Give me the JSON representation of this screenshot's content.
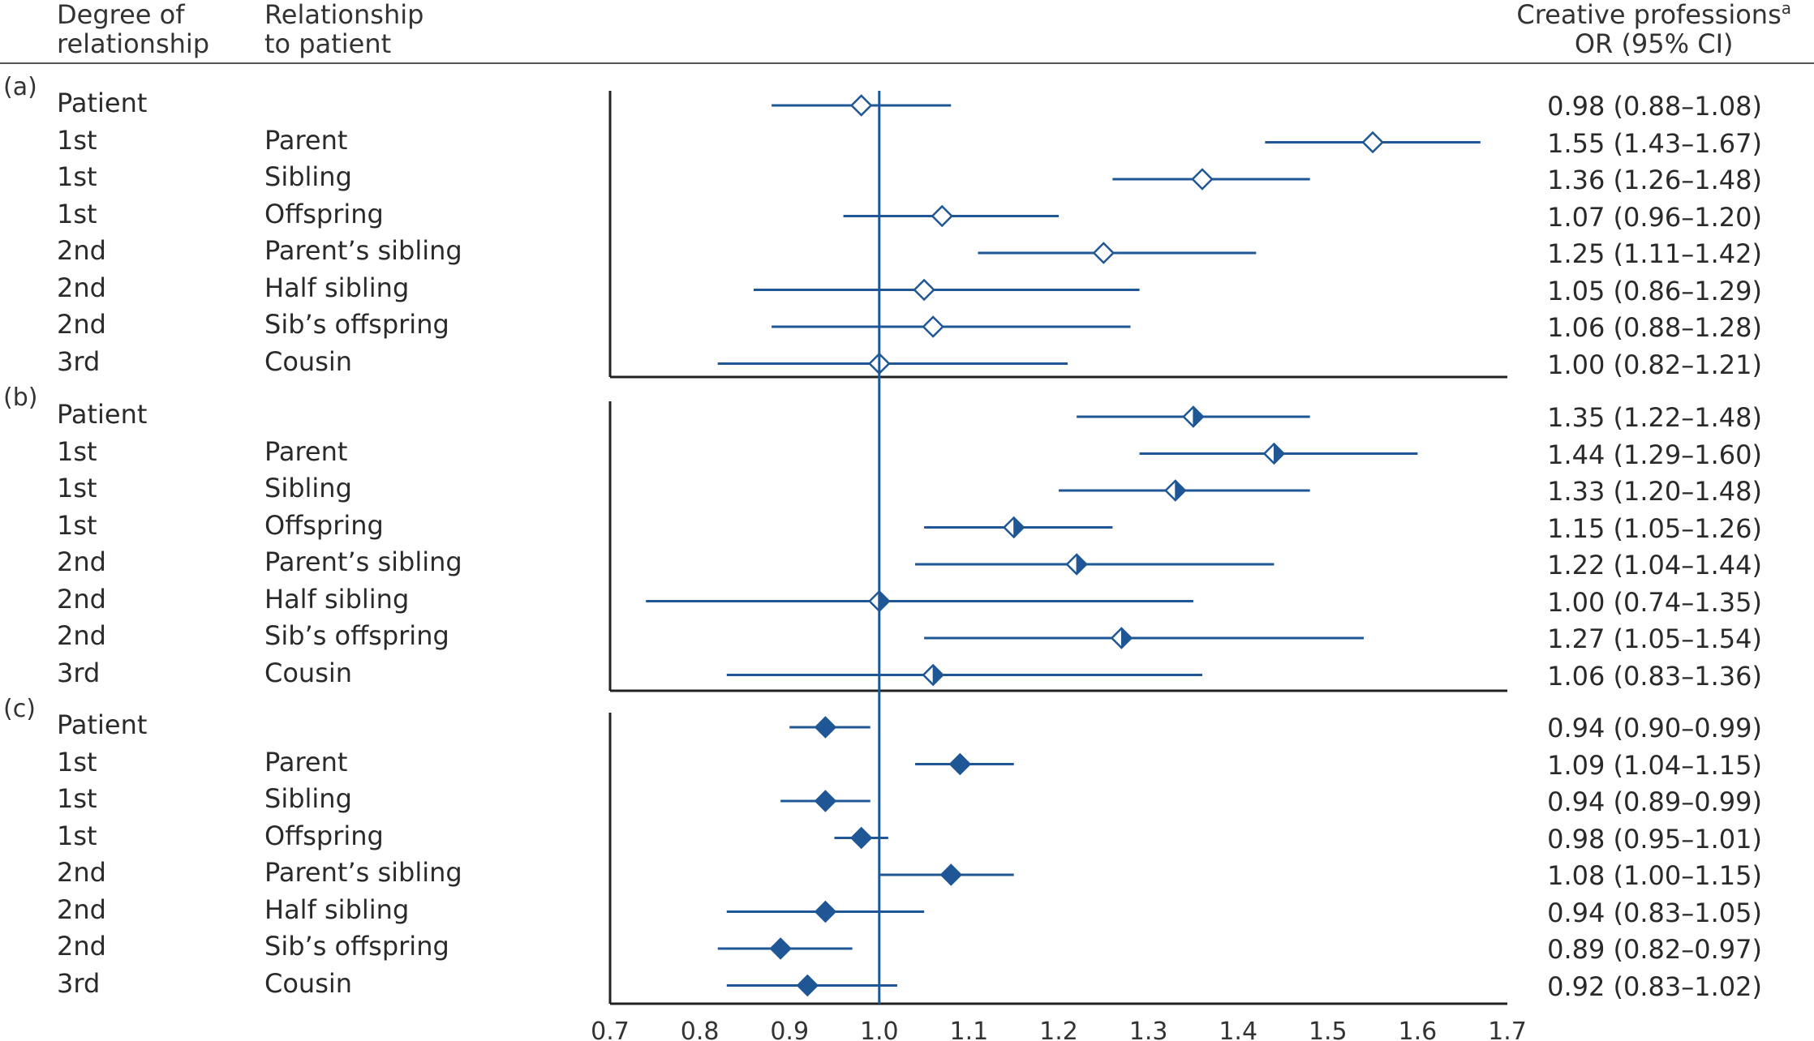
{
  "header": {
    "degree_line1": "Degree of",
    "degree_line2": "relationship",
    "relation_line1": "Relationship",
    "relation_line2": "to patient",
    "or_line1": "Creative professions",
    "or_sup": "a",
    "or_line2": "OR (95% CI)"
  },
  "colors": {
    "series": "#1f5796",
    "axis": "#222222"
  },
  "chart_data": {
    "type": "forest",
    "xlim": [
      0.7,
      1.7
    ],
    "ticks": [
      "0.7",
      "0.8",
      "0.9",
      "1.0",
      "1.1",
      "1.2",
      "1.3",
      "1.4",
      "1.5",
      "1.6",
      "1.7"
    ],
    "reference_line": 1.0,
    "panels": [
      {
        "label": "(a)",
        "marker": "open-diamond",
        "rows": [
          {
            "degree": "Patient",
            "relation": "",
            "or": 0.98,
            "lo": 0.88,
            "hi": 1.08,
            "text": "0.98 (0.88–1.08)"
          },
          {
            "degree": "1st",
            "relation": "Parent",
            "or": 1.55,
            "lo": 1.43,
            "hi": 1.67,
            "text": "1.55 (1.43–1.67)"
          },
          {
            "degree": "1st",
            "relation": "Sibling",
            "or": 1.36,
            "lo": 1.26,
            "hi": 1.48,
            "text": "1.36 (1.26–1.48)"
          },
          {
            "degree": "1st",
            "relation": "Offspring",
            "or": 1.07,
            "lo": 0.96,
            "hi": 1.2,
            "text": "1.07 (0.96–1.20)"
          },
          {
            "degree": "2nd",
            "relation": "Parent’s sibling",
            "or": 1.25,
            "lo": 1.11,
            "hi": 1.42,
            "text": "1.25 (1.11–1.42)"
          },
          {
            "degree": "2nd",
            "relation": "Half sibling",
            "or": 1.05,
            "lo": 0.86,
            "hi": 1.29,
            "text": "1.05 (0.86–1.29)"
          },
          {
            "degree": "2nd",
            "relation": "Sib’s offspring",
            "or": 1.06,
            "lo": 0.88,
            "hi": 1.28,
            "text": "1.06 (0.88–1.28)"
          },
          {
            "degree": "3rd",
            "relation": "Cousin",
            "or": 1.0,
            "lo": 0.82,
            "hi": 1.21,
            "text": "1.00 (0.82–1.21)"
          }
        ]
      },
      {
        "label": "(b)",
        "marker": "half-diamond",
        "rows": [
          {
            "degree": "Patient",
            "relation": "",
            "or": 1.35,
            "lo": 1.22,
            "hi": 1.48,
            "text": "1.35 (1.22–1.48)"
          },
          {
            "degree": "1st",
            "relation": "Parent",
            "or": 1.44,
            "lo": 1.29,
            "hi": 1.6,
            "text": "1.44 (1.29–1.60)"
          },
          {
            "degree": "1st",
            "relation": "Sibling",
            "or": 1.33,
            "lo": 1.2,
            "hi": 1.48,
            "text": "1.33 (1.20–1.48)"
          },
          {
            "degree": "1st",
            "relation": "Offspring",
            "or": 1.15,
            "lo": 1.05,
            "hi": 1.26,
            "text": "1.15 (1.05–1.26)"
          },
          {
            "degree": "2nd",
            "relation": "Parent’s sibling",
            "or": 1.22,
            "lo": 1.04,
            "hi": 1.44,
            "text": "1.22 (1.04–1.44)"
          },
          {
            "degree": "2nd",
            "relation": "Half sibling",
            "or": 1.0,
            "lo": 0.74,
            "hi": 1.35,
            "text": "1.00 (0.74–1.35)"
          },
          {
            "degree": "2nd",
            "relation": "Sib’s offspring",
            "or": 1.27,
            "lo": 1.05,
            "hi": 1.54,
            "text": "1.27 (1.05–1.54)"
          },
          {
            "degree": "3rd",
            "relation": "Cousin",
            "or": 1.06,
            "lo": 0.83,
            "hi": 1.36,
            "text": "1.06 (0.83–1.36)"
          }
        ]
      },
      {
        "label": "(c)",
        "marker": "filled-diamond",
        "rows": [
          {
            "degree": "Patient",
            "relation": "",
            "or": 0.94,
            "lo": 0.9,
            "hi": 0.99,
            "text": "0.94 (0.90–0.99)"
          },
          {
            "degree": "1st",
            "relation": "Parent",
            "or": 1.09,
            "lo": 1.04,
            "hi": 1.15,
            "text": "1.09 (1.04–1.15)"
          },
          {
            "degree": "1st",
            "relation": "Sibling",
            "or": 0.94,
            "lo": 0.89,
            "hi": 0.99,
            "text": "0.94 (0.89–0.99)"
          },
          {
            "degree": "1st",
            "relation": "Offspring",
            "or": 0.98,
            "lo": 0.95,
            "hi": 1.01,
            "text": "0.98 (0.95–1.01)"
          },
          {
            "degree": "2nd",
            "relation": "Parent’s sibling",
            "or": 1.08,
            "lo": 1.0,
            "hi": 1.15,
            "text": "1.08 (1.00–1.15)"
          },
          {
            "degree": "2nd",
            "relation": "Half sibling",
            "or": 0.94,
            "lo": 0.83,
            "hi": 1.05,
            "text": "0.94 (0.83–1.05)"
          },
          {
            "degree": "2nd",
            "relation": "Sib’s offspring",
            "or": 0.89,
            "lo": 0.82,
            "hi": 0.97,
            "text": "0.89 (0.82–0.97)"
          },
          {
            "degree": "3rd",
            "relation": "Cousin",
            "or": 0.92,
            "lo": 0.83,
            "hi": 1.02,
            "text": "0.92 (0.83–1.02)"
          }
        ]
      }
    ]
  }
}
